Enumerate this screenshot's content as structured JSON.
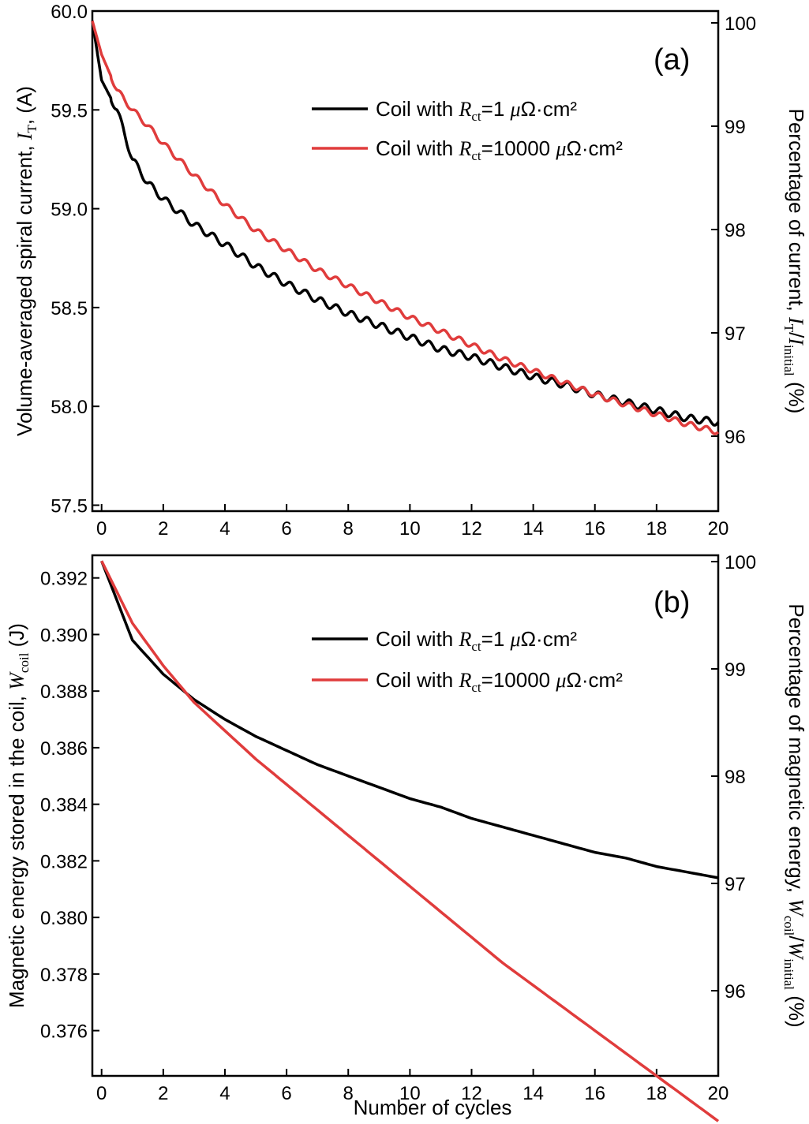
{
  "chart_data": [
    {
      "type": "line",
      "panel_label": "(a)",
      "xlim": [
        -0.3,
        20
      ],
      "x_ticks": [
        "0",
        "2",
        "4",
        "6",
        "8",
        "10",
        "12",
        "14",
        "16",
        "18",
        "20"
      ],
      "ylim": [
        57.47,
        60.0
      ],
      "y_ticks": [
        "57.5",
        "58.0",
        "58.5",
        "59.0",
        "59.5",
        "60.0"
      ],
      "ylabel": "Volume-averaged spiral current, I_T, (A)",
      "ylabel_parts": {
        "main": "Volume-averaged spiral current, ",
        "sym": "I",
        "sub": "T",
        "tail": ", (A)"
      },
      "y2_ticks": [
        "96",
        "97",
        "98",
        "99",
        "100"
      ],
      "y2label_parts": {
        "main": "Percentage of current, ",
        "sym": "I",
        "sub": "T",
        "mid": "/",
        "sym2": "I",
        "sub2": "initial",
        "tail": " (%)"
      },
      "series": [
        {
          "name": "Coil with Rct=1 μΩ·cm²",
          "name_parts": {
            "a": "Coil with ",
            "sym": "R",
            "sub": "ct",
            "b": "=1 ",
            "mu": "μ",
            "c": "Ω·cm²"
          },
          "color": "#000000",
          "x": [
            -0.3,
            0.0,
            0.5,
            1.0,
            1.5,
            2.0,
            3.0,
            4.0,
            5.0,
            6.0,
            7.0,
            8.0,
            9.0,
            10.0,
            11.0,
            12.0,
            13.0,
            14.0,
            15.0,
            16.0,
            17.0,
            18.0,
            19.0,
            20.0
          ],
          "values": [
            59.95,
            59.65,
            59.5,
            59.25,
            59.13,
            59.05,
            58.92,
            58.82,
            58.71,
            58.62,
            58.54,
            58.47,
            58.41,
            58.35,
            58.29,
            58.25,
            58.2,
            58.15,
            58.11,
            58.06,
            58.02,
            57.98,
            57.94,
            57.92
          ]
        },
        {
          "name": "Coil with Rct=10000 μΩ·cm²",
          "name_parts": {
            "a": "Coil with ",
            "sym": "R",
            "sub": "ct",
            "b": "=10000 ",
            "mu": "μ",
            "c": "Ω·cm²"
          },
          "color": "#e03c3c",
          "x": [
            -0.3,
            0.0,
            0.5,
            1.0,
            1.5,
            2.0,
            3.0,
            4.0,
            5.0,
            6.0,
            7.0,
            8.0,
            9.0,
            10.0,
            11.0,
            12.0,
            13.0,
            14.0,
            15.0,
            16.0,
            17.0,
            18.0,
            19.0,
            20.0
          ],
          "values": [
            59.95,
            59.78,
            59.6,
            59.5,
            59.42,
            59.33,
            59.17,
            59.02,
            58.89,
            58.79,
            58.69,
            58.61,
            58.53,
            58.45,
            58.38,
            58.31,
            58.24,
            58.18,
            58.12,
            58.06,
            58.01,
            57.96,
            57.91,
            57.87
          ]
        }
      ]
    },
    {
      "type": "line",
      "panel_label": "(b)",
      "xlim": [
        -0.3,
        20
      ],
      "x_ticks": [
        "0",
        "2",
        "4",
        "6",
        "8",
        "10",
        "12",
        "14",
        "16",
        "18",
        "20"
      ],
      "xlabel": "Number of cycles",
      "ylim": [
        0.3744,
        0.3928
      ],
      "y_ticks": [
        "0.376",
        "0.378",
        "0.380",
        "0.382",
        "0.384",
        "0.386",
        "0.388",
        "0.390",
        "0.392"
      ],
      "ylabel_parts": {
        "main": "Magnetic energy stored in the coil, ",
        "sym": "W",
        "sub": "coil",
        "tail": " (J)"
      },
      "y2_ticks": [
        "96",
        "97",
        "98",
        "99",
        "100"
      ],
      "y2label_parts": {
        "main": "Percentage of magnetic energy, ",
        "sym": "W",
        "sub": "coil",
        "mid": "/",
        "sym2": "W",
        "sub2": "initial",
        "tail": " (%)"
      },
      "series": [
        {
          "name": "Coil with Rct=1 μΩ·cm²",
          "name_parts": {
            "a": "Coil with ",
            "sym": "R",
            "sub": "ct",
            "b": "=1 ",
            "mu": "μ",
            "c": "Ω·cm²"
          },
          "color": "#000000",
          "x": [
            0,
            1,
            2,
            3,
            4,
            5,
            6,
            7,
            8,
            9,
            10,
            11,
            12,
            13,
            14,
            15,
            16,
            17,
            18,
            19,
            20
          ],
          "values": [
            0.3926,
            0.3898,
            0.3886,
            0.3877,
            0.387,
            0.3864,
            0.3859,
            0.3854,
            0.385,
            0.3846,
            0.3842,
            0.3839,
            0.3835,
            0.3832,
            0.3829,
            0.3826,
            0.3823,
            0.3821,
            0.3818,
            0.3816,
            0.3814
          ]
        },
        {
          "name": "Coil with Rct=10000 μΩ·cm²",
          "name_parts": {
            "a": "Coil with ",
            "sym": "R",
            "sub": "ct",
            "b": "=10000 ",
            "mu": "μ",
            "c": "Ω·cm²"
          },
          "color": "#e03c3c",
          "x": [
            0,
            1,
            2,
            3,
            4,
            5,
            6,
            7,
            8,
            9,
            10,
            11,
            12,
            13,
            14,
            15,
            16,
            17,
            18,
            19,
            20
          ],
          "values": [
            0.3926,
            0.3904,
            0.3889,
            0.3876,
            0.3866,
            0.3856,
            0.3847,
            0.3838,
            0.3829,
            0.382,
            0.3811,
            0.3802,
            0.3793,
            0.3784,
            0.3776,
            0.3768,
            0.376,
            0.3752,
            0.3744,
            0.3736,
            0.3728
          ]
        }
      ]
    }
  ]
}
